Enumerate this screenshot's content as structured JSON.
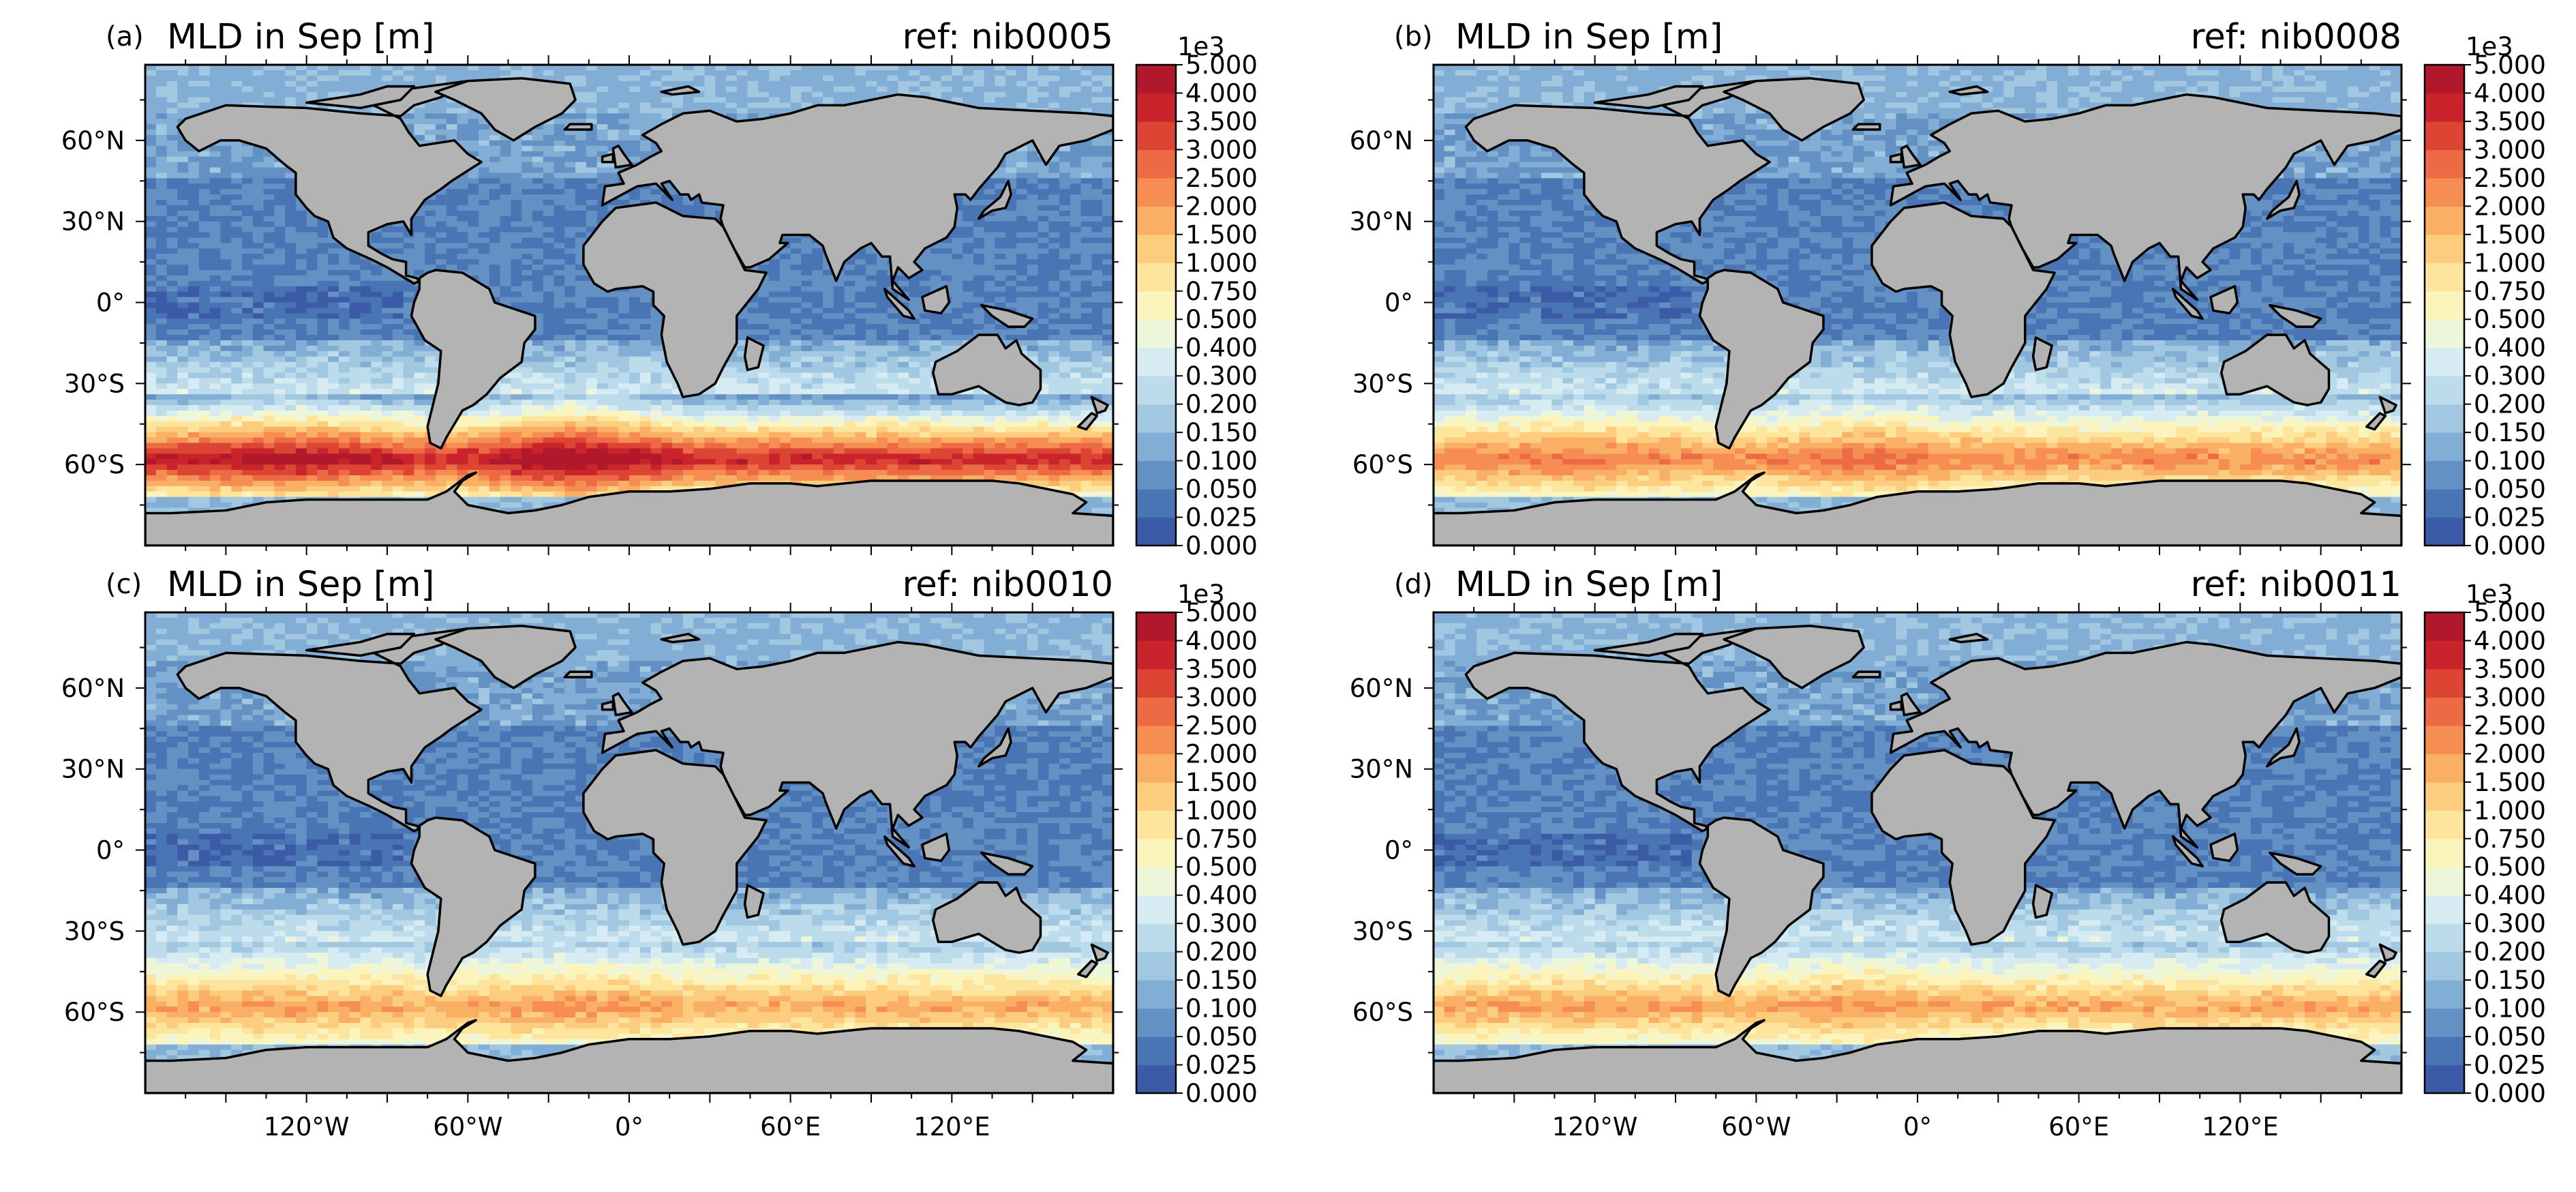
{
  "chart_data": {
    "type": "heatmap",
    "variable": "MLD",
    "month": "Sep",
    "units": "m",
    "colorbar": {
      "multiplier": "1e3",
      "levels": [
        "0.000",
        "0.025",
        "0.050",
        "0.100",
        "0.150",
        "0.200",
        "0.300",
        "0.400",
        "0.500",
        "0.750",
        "1.000",
        "1.500",
        "2.000",
        "2.500",
        "3.000",
        "3.500",
        "4.000",
        "5.000"
      ],
      "colors": [
        "#3b5ba6",
        "#4a75b5",
        "#6491c4",
        "#82add4",
        "#a1c8e0",
        "#bcdcec",
        "#d6ebf2",
        "#eef6da",
        "#fbf5bd",
        "#fde59d",
        "#fdcd7f",
        "#fab064",
        "#f68d52",
        "#ec6a44",
        "#dc4434",
        "#c9242c",
        "#b2182b"
      ]
    },
    "xticks": [
      "120°W",
      "60°W",
      "0°",
      "60°E",
      "120°E"
    ],
    "yticks": [
      "60°N",
      "30°N",
      "0°",
      "30°S",
      "60°S"
    ],
    "land_color": "#b3b3b3",
    "panels": [
      {
        "label": "(a)",
        "title": "MLD in Sep [m]",
        "ref": "ref: nib0005",
        "so_max_level": 16
      },
      {
        "label": "(b)",
        "title": "MLD in Sep [m]",
        "ref": "ref: nib0008",
        "so_max_level": 13
      },
      {
        "label": "(c)",
        "title": "MLD in Sep [m]",
        "ref": "ref: nib0010",
        "so_max_level": 12
      },
      {
        "label": "(d)",
        "title": "MLD in Sep [m]",
        "ref": "ref: nib0011",
        "so_max_level": 12
      }
    ]
  }
}
